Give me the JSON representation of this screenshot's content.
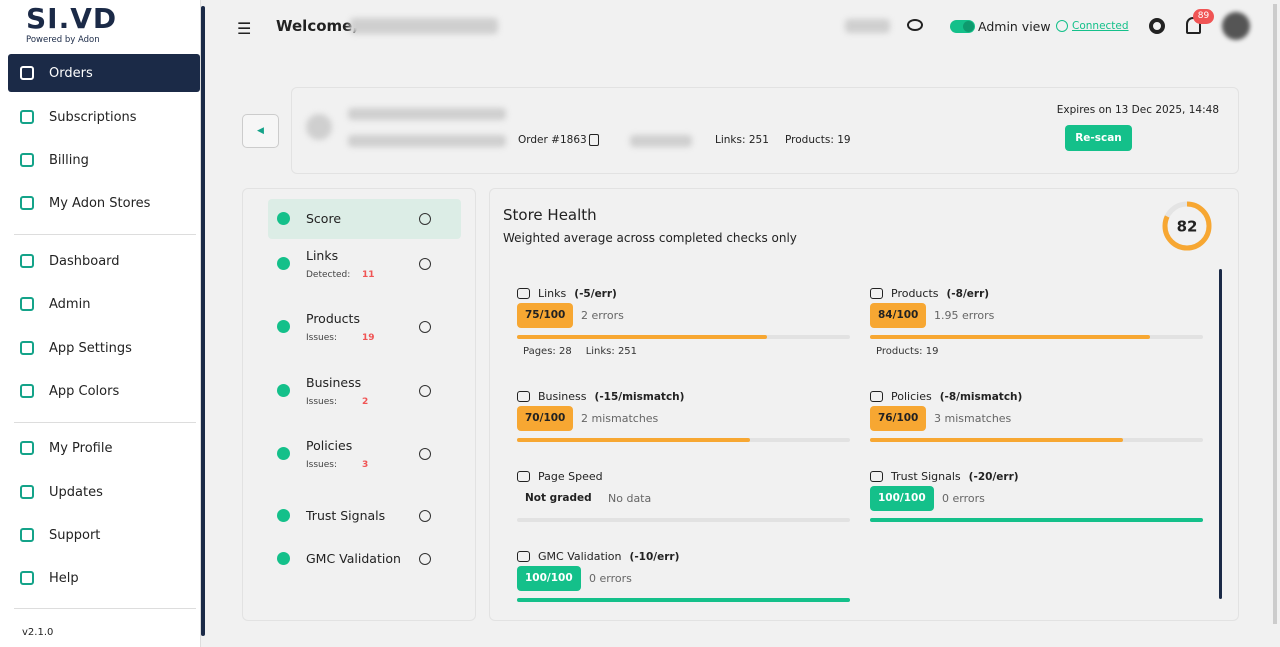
{
  "sidebar": {
    "logo": "SI.VD",
    "logo_sub": "Powered by Adon",
    "nav": [
      {
        "label": "Orders"
      },
      {
        "label": "Subscriptions"
      },
      {
        "label": "Billing"
      },
      {
        "label": "My Adon Stores"
      },
      {
        "label": "Dashboard"
      },
      {
        "label": "Admin"
      },
      {
        "label": "App Settings"
      },
      {
        "label": "App Colors"
      },
      {
        "label": "My Profile"
      },
      {
        "label": "Updates"
      },
      {
        "label": "Support"
      },
      {
        "label": "Help"
      }
    ],
    "version": "v2.1.0"
  },
  "header": {
    "welcome": "Welcome,",
    "admin_view": "Admin view",
    "status": "Connected",
    "notifications": "89"
  },
  "order": {
    "order_id": "Order #1863",
    "links": "Links: 251",
    "products": "Products: 19",
    "expires": "Expires on 13 Dec 2025, 14:48",
    "rescan": "Re-scan"
  },
  "checks_nav": [
    {
      "label": "Score"
    },
    {
      "label": "Links",
      "detail_label": "Detected:",
      "detail_value": "11"
    },
    {
      "label": "Products",
      "detail_label": "Issues:",
      "detail_value": "19"
    },
    {
      "label": "Business",
      "detail_label": "Issues:",
      "detail_value": "2"
    },
    {
      "label": "Policies",
      "detail_label": "Issues:",
      "detail_value": "3"
    },
    {
      "label": "Trust Signals"
    },
    {
      "label": "GMC Validation"
    }
  ],
  "health": {
    "title": "Store Health",
    "subtitle": "Weighted average across completed checks only",
    "score": 82,
    "cards": [
      {
        "name": "Links",
        "penalty": "(-5/err)",
        "value": 75,
        "value_label": "75/100",
        "status": "2 errors",
        "meta": [
          "Pages: 28",
          "Links: 251"
        ]
      },
      {
        "name": "Products",
        "penalty": "(-8/err)",
        "value": 84,
        "value_label": "84/100",
        "status": "1.95 errors",
        "meta": [
          "Products: 19"
        ]
      },
      {
        "name": "Business",
        "penalty": "(-15/mismatch)",
        "value": 70,
        "value_label": "70/100",
        "status": "2 mismatches"
      },
      {
        "name": "Policies",
        "penalty": "(-8/mismatch)",
        "value": 76,
        "value_label": "76/100",
        "status": "3 mismatches"
      },
      {
        "name": "Page Speed",
        "value_label": "Not graded",
        "status": "No data"
      },
      {
        "name": "Trust Signals",
        "penalty": "(-20/err)",
        "value": 100,
        "value_label": "100/100",
        "status": "0 errors"
      },
      {
        "name": "GMC Validation",
        "penalty": "(-10/err)",
        "value": 100,
        "value_label": "100/100",
        "status": "0 errors"
      }
    ]
  }
}
